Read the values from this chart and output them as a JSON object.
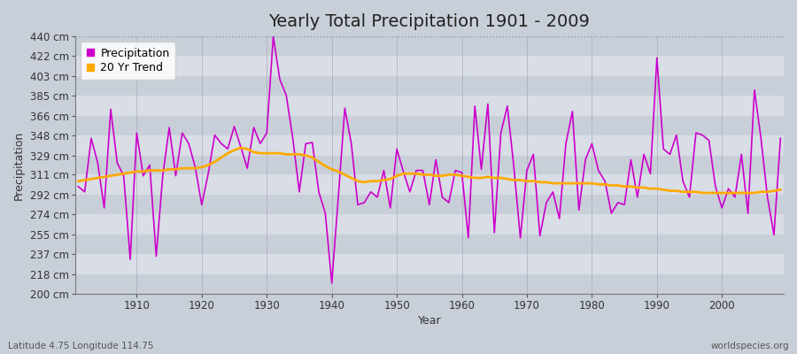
{
  "title": "Yearly Total Precipitation 1901 - 2009",
  "xlabel": "Year",
  "ylabel": "Precipitation",
  "subtitle_left": "Latitude 4.75 Longitude 114.75",
  "subtitle_right": "worldspecies.org",
  "years": [
    1901,
    1902,
    1903,
    1904,
    1905,
    1906,
    1907,
    1908,
    1909,
    1910,
    1911,
    1912,
    1913,
    1914,
    1915,
    1916,
    1917,
    1918,
    1919,
    1920,
    1921,
    1922,
    1923,
    1924,
    1925,
    1926,
    1927,
    1928,
    1929,
    1930,
    1931,
    1932,
    1933,
    1934,
    1935,
    1936,
    1937,
    1938,
    1939,
    1940,
    1941,
    1942,
    1943,
    1944,
    1945,
    1946,
    1947,
    1948,
    1949,
    1950,
    1951,
    1952,
    1953,
    1954,
    1955,
    1956,
    1957,
    1958,
    1959,
    1960,
    1961,
    1962,
    1963,
    1964,
    1965,
    1966,
    1967,
    1968,
    1969,
    1970,
    1971,
    1972,
    1973,
    1974,
    1975,
    1976,
    1977,
    1978,
    1979,
    1980,
    1981,
    1982,
    1983,
    1984,
    1985,
    1986,
    1987,
    1988,
    1989,
    1990,
    1991,
    1992,
    1993,
    1994,
    1995,
    1996,
    1997,
    1998,
    1999,
    2000,
    2001,
    2002,
    2003,
    2004,
    2005,
    2006,
    2007,
    2008,
    2009
  ],
  "precip": [
    300,
    295,
    345,
    322,
    280,
    372,
    322,
    310,
    232,
    350,
    310,
    320,
    235,
    310,
    355,
    310,
    350,
    340,
    318,
    283,
    312,
    348,
    340,
    335,
    356,
    337,
    317,
    355,
    340,
    350,
    440,
    400,
    385,
    345,
    295,
    340,
    341,
    295,
    275,
    210,
    290,
    373,
    340,
    283,
    285,
    295,
    290,
    315,
    280,
    335,
    314,
    295,
    315,
    315,
    283,
    325,
    290,
    285,
    315,
    313,
    252,
    375,
    316,
    377,
    257,
    350,
    375,
    318,
    252,
    315,
    330,
    254,
    285,
    295,
    270,
    340,
    370,
    278,
    325,
    340,
    315,
    305,
    275,
    285,
    283,
    325,
    290,
    330,
    312,
    420,
    335,
    330,
    348,
    305,
    290,
    350,
    348,
    343,
    300,
    280,
    298,
    290,
    330,
    275,
    390,
    345,
    290,
    255,
    345
  ],
  "trend": [
    305,
    306,
    307,
    308,
    309,
    310,
    311,
    312,
    313,
    314,
    314,
    315,
    315,
    315,
    316,
    316,
    317,
    317,
    317,
    318,
    320,
    323,
    327,
    331,
    334,
    336,
    335,
    332,
    331,
    331,
    331,
    331,
    330,
    330,
    330,
    329,
    327,
    323,
    319,
    316,
    314,
    311,
    308,
    305,
    304,
    305,
    305,
    306,
    307,
    310,
    312,
    312,
    312,
    311,
    311,
    310,
    310,
    311,
    311,
    310,
    309,
    308,
    308,
    309,
    308,
    308,
    307,
    306,
    306,
    305,
    305,
    304,
    304,
    303,
    303,
    303,
    303,
    303,
    303,
    303,
    302,
    302,
    301,
    301,
    300,
    300,
    299,
    299,
    298,
    298,
    297,
    296,
    296,
    295,
    295,
    295,
    294,
    294,
    294,
    294,
    294,
    294,
    294,
    294,
    294,
    295,
    295,
    296,
    297
  ],
  "ylim": [
    200,
    440
  ],
  "yticks": [
    200,
    218,
    237,
    255,
    274,
    292,
    311,
    329,
    348,
    366,
    385,
    403,
    422,
    440
  ],
  "ytick_labels": [
    "200 cm",
    "218 cm",
    "237 cm",
    "255 cm",
    "274 cm",
    "292 cm",
    "311 cm",
    "329 cm",
    "348 cm",
    "366 cm",
    "385 cm",
    "403 cm",
    "422 cm",
    "440 cm"
  ],
  "xticks": [
    1910,
    1920,
    1930,
    1940,
    1950,
    1960,
    1970,
    1980,
    1990,
    2000
  ],
  "bg_color": "#c8cfd8",
  "plot_bg_lighter": "#d8dde6",
  "plot_bg_darker": "#c8cfd8",
  "precip_color": "#cc00cc",
  "trend_color": "#ffaa00",
  "title_fontsize": 14,
  "label_fontsize": 9,
  "tick_fontsize": 8.5,
  "legend_fontsize": 9
}
